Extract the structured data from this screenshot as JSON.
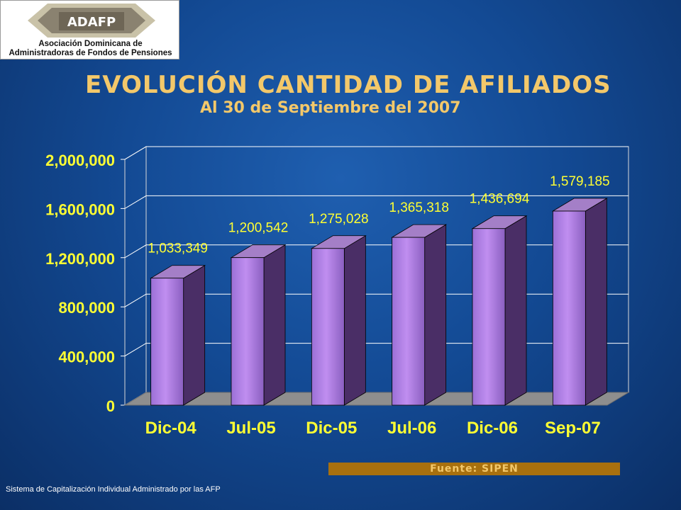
{
  "logo": {
    "mark_text": "ADAFP",
    "line1": "Asociación Dominicana de",
    "line2": "Administradoras de Fondos de Pensiones"
  },
  "header": {
    "title": "EVOLUCIÓN CANTIDAD DE AFILIADOS",
    "subtitle": "Al 30 de Septiembre del 2007"
  },
  "chart_data": {
    "type": "bar",
    "title": "EVOLUCIÓN CANTIDAD DE AFILIADOS",
    "subtitle": "Al 30 de Septiembre del 2007",
    "categories": [
      "Dic-04",
      "Jul-05",
      "Dic-05",
      "Jul-06",
      "Dic-06",
      "Sep-07"
    ],
    "values": [
      1033349,
      1200542,
      1275028,
      1365318,
      1436694,
      1579185
    ],
    "value_labels": [
      "1,033,349",
      "1,200,542",
      "1,275,028",
      "1,365,318",
      "1,436,694",
      "1,579,185"
    ],
    "yticks": [
      0,
      400000,
      800000,
      1200000,
      1600000,
      2000000
    ],
    "ytick_labels": [
      "0",
      "400,000",
      "800,000",
      "1,200,000",
      "1,600,000",
      "2,000,000"
    ],
    "ylim": [
      0,
      2000000
    ],
    "grid": true,
    "legend": "none",
    "colors": {
      "bar_front": "#c08ef0",
      "bar_top": "#a47fc7",
      "bar_side": "#4a2e66",
      "label": "#ffff33",
      "floor": "#8e8e8e",
      "grid": "#ffffff"
    }
  },
  "source": {
    "text": "Fuente: SIPEN"
  },
  "footer": {
    "text": "Sistema de Capitalización Individual Administrado por las AFP"
  }
}
